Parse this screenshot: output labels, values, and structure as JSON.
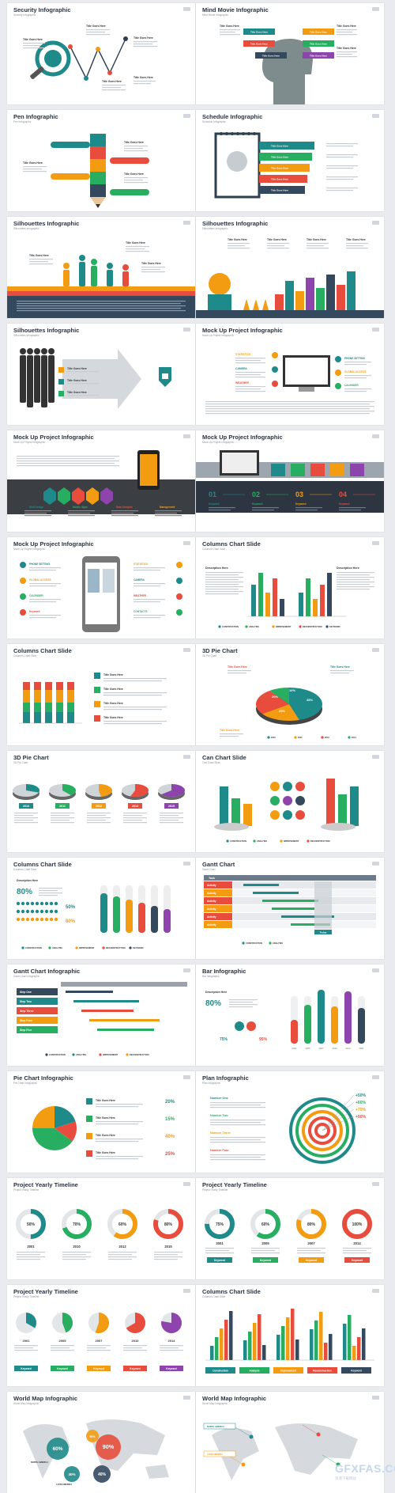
{
  "slides": [
    {
      "title": "Security Infographic",
      "subtitle": "Security Infographic"
    },
    {
      "title": "Mind Movie Infographic",
      "subtitle": "Mind Movie Infographic"
    },
    {
      "title": "Pen Infographic",
      "subtitle": "Pen Infographic"
    },
    {
      "title": "Schedule Infographic",
      "subtitle": "Schedule Infographic"
    },
    {
      "title": "Silhouettes Infographic",
      "subtitle": "Silhouettes Infographic"
    },
    {
      "title": "Silhouettes Infographic",
      "subtitle": "Silhouettes Infographic"
    },
    {
      "title": "Silhouettes Infographic",
      "subtitle": "Silhouettes Infographic"
    },
    {
      "title": "Mock Up Project Infographic",
      "subtitle": "Mock Up Project Infographic"
    },
    {
      "title": "Mock Up Project Infographic",
      "subtitle": "Mock Up Project Infographic"
    },
    {
      "title": "Mock Up Project Infographic",
      "subtitle": "Mock Up Project Infographic"
    },
    {
      "title": "Mock Up Project Infographic",
      "subtitle": "Mock Up Project Infographic"
    },
    {
      "title": "Columns Chart Slide",
      "subtitle": "Columns Chart Slide"
    },
    {
      "title": "Columns Chart Slide",
      "subtitle": "Columns Chart Slide"
    },
    {
      "title": "3D Pie Chart",
      "subtitle": "3D Pie Chart"
    },
    {
      "title": "3D Pie Chart",
      "subtitle": "3D Pie Chart"
    },
    {
      "title": "Can Chart Slide",
      "subtitle": "Can Chart Slide"
    },
    {
      "title": "Columns Chart Slide",
      "subtitle": "Columns Chart Slide"
    },
    {
      "title": "Gantt Chart",
      "subtitle": "Gantt Chart"
    },
    {
      "title": "Gantt Chart Infographic",
      "subtitle": "Gantt Chart Infographic"
    },
    {
      "title": "Bar Infographic",
      "subtitle": "Bar Infographic"
    },
    {
      "title": "Pie Chart Infographic",
      "subtitle": "Pie Chart Infographic"
    },
    {
      "title": "Plan Infographic",
      "subtitle": "Plan Infographic"
    },
    {
      "title": "Project Yearly Timeline",
      "subtitle": "Project Yearly Timeline"
    },
    {
      "title": "Project Yearly Timeline",
      "subtitle": "Project Yearly Timeline"
    },
    {
      "title": "Project Yearly Timeline",
      "subtitle": "Project Yearly Timeline"
    },
    {
      "title": "Columns Chart Slide",
      "subtitle": "Columns Chart Slide"
    },
    {
      "title": "World Map Infographic",
      "subtitle": "World Map Infographic"
    },
    {
      "title": "World Map Infographic",
      "subtitle": "World Map Infographic"
    }
  ],
  "labels": {
    "title_goes_here": "Title Goes Here",
    "description_here": "Description Here",
    "keyword": "Keyword",
    "today": "Today",
    "task": "Task",
    "activity": "Activity",
    "step_one": "Step One",
    "step_two": "Step Two",
    "step_three": "Step Three",
    "step_four": "Step Four",
    "step_five": "Step Five",
    "number_one": "Number One",
    "number_two": "Number Two",
    "number_three": "Number Three",
    "number_four": "Number Four",
    "web_design": "Web Design",
    "mobile_apps": "Mobile Apps",
    "data_analysis": "Data Analysis",
    "management": "Management",
    "phone_setting": "PHONE SETTING",
    "global_access": "GLOBAL ACCESS",
    "calender": "CALENDER",
    "statistics": "STATISTICS",
    "camera": "CAMERA",
    "weather": "WEATHER",
    "contacts": "CONTACTS",
    "construction": "Construction",
    "analysis": "Analysis",
    "improvement": "Improvement",
    "reconstruction": "Reconstruction",
    "north_america": "NORTH AMERICA",
    "latin_america": "LATIN AMERICA",
    "europe": "EUROPE",
    "africa": "AFRICA",
    "asia": "ASIA",
    "australia": "AUSTRALIA",
    "world_map_label_1": "NORTH AMERICA",
    "world_map_label_2": "LATIN AMERICA"
  },
  "numbers": {
    "steps": [
      "01",
      "02",
      "03",
      "04"
    ],
    "years_a": [
      "2010",
      "2011",
      "2012",
      "2014",
      "2015"
    ],
    "years_b": [
      "2001",
      "2010",
      "2012",
      "2015"
    ],
    "years_c": [
      "2001",
      "2005",
      "2007",
      "2014"
    ],
    "years_d": [
      "2001",
      "2005",
      "2007",
      "2010",
      "2014"
    ],
    "percent_80": "80%",
    "percent_50": "50%",
    "percent_75": "75%",
    "percent_95": "95%",
    "pie_pcts": [
      "20%",
      "15%",
      "40%",
      "25%"
    ],
    "plan_pcts": [
      "+50%",
      "+60%",
      "+70%",
      "+90%"
    ],
    "timeline_pcts_a": [
      "50%",
      "70%",
      "60%",
      "80%"
    ],
    "timeline_pcts_b": [
      "75%",
      "60%",
      "80%",
      "100%"
    ],
    "world_pcts": [
      "60%",
      "90%",
      "50%",
      "40%",
      "40%"
    ],
    "pie3d_pcts": [
      "45%",
      "20%",
      "25%",
      "10%"
    ]
  },
  "watermark": {
    "logo": "GFXFAS.COM",
    "sub": "资源下载网站"
  },
  "colors": {
    "teal": "#1f8a8a",
    "orange": "#f39c12",
    "red": "#e74c3c",
    "navy": "#34495e",
    "purple": "#8e44ad",
    "green": "#27ae60"
  }
}
